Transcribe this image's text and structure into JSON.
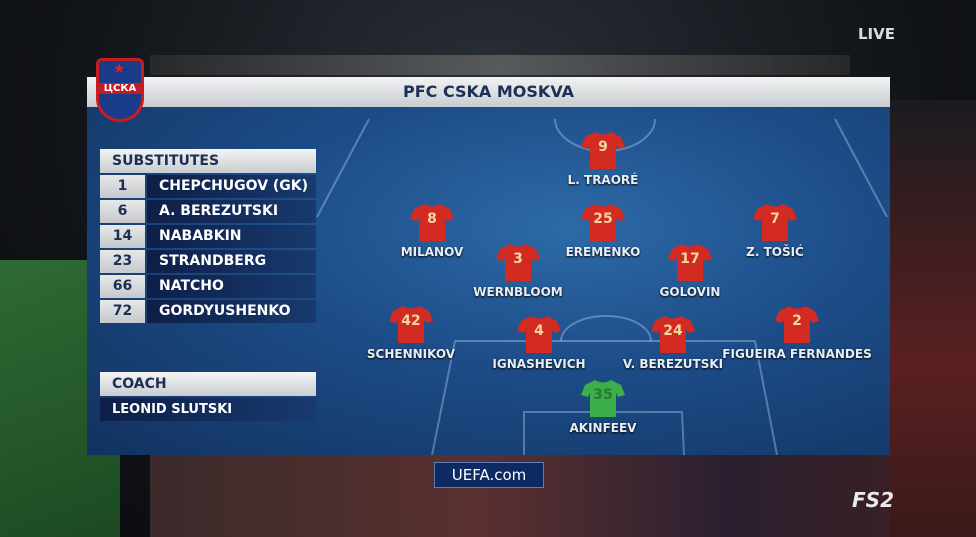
{
  "team": {
    "title": "PFC CSKA MOSKVA",
    "crest_text": "ЦСКА",
    "primary_color": "#c61d23",
    "kit_color": "#d32a22",
    "gk_kit_color": "#3cae4a"
  },
  "substitutes": {
    "label": "SUBSTITUTES",
    "items": [
      {
        "number": "1",
        "name": "CHEPCHUGOV (GK)"
      },
      {
        "number": "6",
        "name": "A. BEREZUTSKI"
      },
      {
        "number": "14",
        "name": "NABABKIN"
      },
      {
        "number": "23",
        "name": "STRANDBERG"
      },
      {
        "number": "66",
        "name": "NATCHO"
      },
      {
        "number": "72",
        "name": "GORDYUSHENKO"
      }
    ]
  },
  "coach": {
    "label": "COACH",
    "name": "LEONID SLUTSKI"
  },
  "players": [
    {
      "number": "9",
      "name": "L. TRAORÉ"
    },
    {
      "number": "8",
      "name": "MILANOV"
    },
    {
      "number": "25",
      "name": "EREMENKO"
    },
    {
      "number": "7",
      "name": "Z. TOŠIĆ"
    },
    {
      "number": "3",
      "name": "WERNBLOOM"
    },
    {
      "number": "17",
      "name": "GOLOVIN"
    },
    {
      "number": "42",
      "name": "SCHENNIKOV"
    },
    {
      "number": "4",
      "name": "IGNASHEVICH"
    },
    {
      "number": "24",
      "name": "V. BEREZUTSKI"
    },
    {
      "number": "2",
      "name": "FIGUEIRA FERNANDES"
    },
    {
      "number": "35",
      "name": "AKINFEEV",
      "goalkeeper": true
    }
  ],
  "overlay": {
    "live": "LIVE",
    "uefa": "UEFA.com",
    "channel": "FS2"
  }
}
